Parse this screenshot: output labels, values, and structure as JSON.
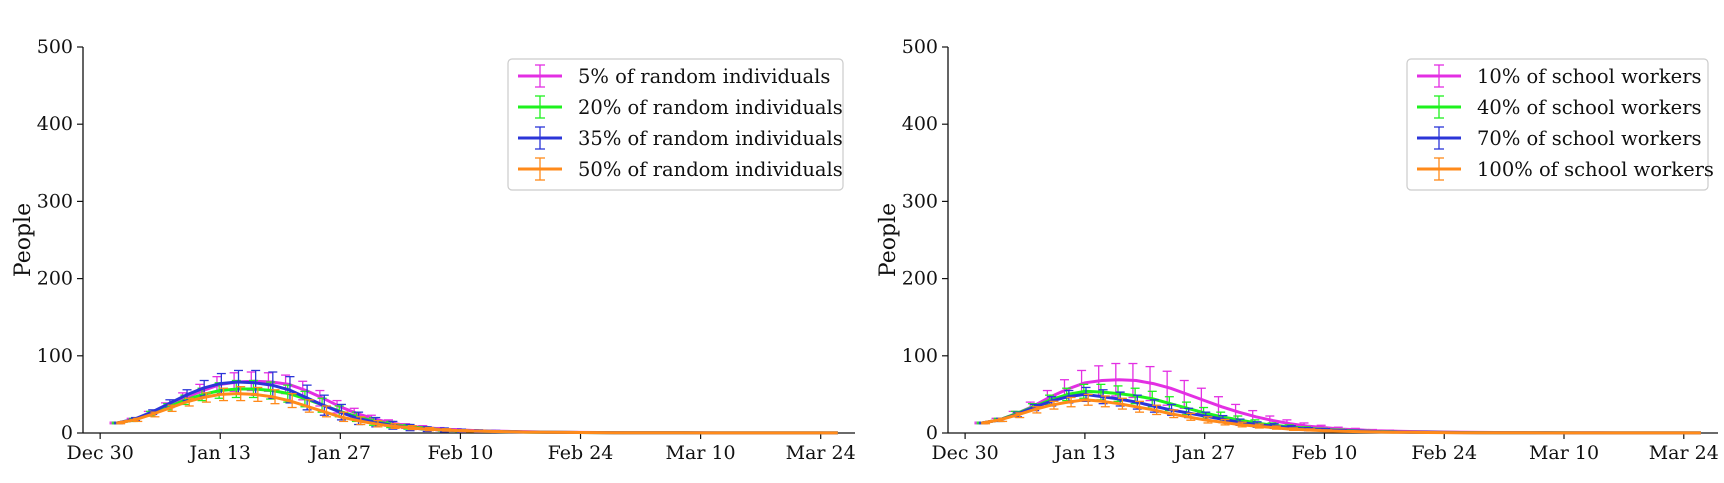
{
  "chart_data": [
    {
      "type": "line",
      "ylabel": "People",
      "ylim": [
        0,
        500
      ],
      "yticks": [
        0,
        100,
        200,
        300,
        400,
        500
      ],
      "xlim": [
        "2020-12-28",
        "2021-03-28"
      ],
      "xticks": [
        {
          "date": "2020-12-30",
          "label": "Dec 30"
        },
        {
          "date": "2021-01-13",
          "label": "Jan 13"
        },
        {
          "date": "2021-01-27",
          "label": "Jan 27"
        },
        {
          "date": "2021-02-10",
          "label": "Feb 10"
        },
        {
          "date": "2021-02-24",
          "label": "Feb 24"
        },
        {
          "date": "2021-03-10",
          "label": "Mar 10"
        },
        {
          "date": "2021-03-24",
          "label": "Mar 24"
        }
      ],
      "legend_position": "top-right",
      "grid": false,
      "error_bars": true,
      "x": [
        "2021-01-01",
        "2021-01-03",
        "2021-01-05",
        "2021-01-07",
        "2021-01-09",
        "2021-01-11",
        "2021-01-13",
        "2021-01-15",
        "2021-01-17",
        "2021-01-19",
        "2021-01-21",
        "2021-01-23",
        "2021-01-25",
        "2021-01-27",
        "2021-01-29",
        "2021-01-31",
        "2021-02-02",
        "2021-02-04",
        "2021-02-06",
        "2021-02-08",
        "2021-02-10",
        "2021-02-12",
        "2021-02-14",
        "2021-02-16",
        "2021-02-18",
        "2021-02-20",
        "2021-02-22",
        "2021-02-24",
        "2021-02-26",
        "2021-02-28",
        "2021-03-02",
        "2021-03-04",
        "2021-03-06",
        "2021-03-08",
        "2021-03-10",
        "2021-03-12",
        "2021-03-14",
        "2021-03-16",
        "2021-03-18",
        "2021-03-20",
        "2021-03-22",
        "2021-03-24",
        "2021-03-26"
      ],
      "series": [
        {
          "name": "5% of random individuals",
          "color": "#e32fe3",
          "values": [
            13,
            17,
            25,
            35,
            46,
            55,
            63,
            66,
            67,
            66,
            63,
            55,
            45,
            34,
            25,
            18,
            13,
            9,
            7,
            5,
            4,
            3,
            2.5,
            2,
            1.5,
            1.2,
            1,
            0.8,
            0.6,
            0.5,
            0.4,
            0.3,
            0.2,
            0.2,
            0.2,
            0.1,
            0.1,
            0.1,
            0.1,
            0.1,
            0.1,
            0.1,
            0.1
          ],
          "errors": [
            1,
            2,
            3,
            4,
            6,
            8,
            10,
            12,
            12,
            12,
            12,
            12,
            10,
            8,
            7,
            5,
            4,
            3,
            2.5,
            2,
            1.5,
            1.2,
            1,
            0.8,
            0.6,
            0.5,
            0.4,
            0.3,
            0.3,
            0.2,
            0.2,
            0.2,
            0.1,
            0.1,
            0.1,
            0.1,
            0.1,
            0.1,
            0.1,
            0.1,
            0.1,
            0.1,
            0.1
          ]
        },
        {
          "name": "20% of random individuals",
          "color": "#1ef21e",
          "values": [
            13,
            17,
            25,
            34,
            43,
            50,
            55,
            57,
            57,
            55,
            51,
            44,
            36,
            28,
            21,
            15,
            11,
            8,
            6,
            4,
            3,
            2.5,
            2,
            1.5,
            1.2,
            1,
            0.8,
            0.6,
            0.5,
            0.4,
            0.3,
            0.2,
            0.2,
            0.2,
            0.1,
            0.1,
            0.1,
            0.1,
            0.1,
            0.1,
            0.1,
            0.1,
            0.1
          ],
          "errors": [
            1,
            2,
            3,
            4,
            6,
            8,
            10,
            11,
            11,
            11,
            11,
            10,
            9,
            7,
            6,
            5,
            4,
            3,
            2,
            1.5,
            1.2,
            1,
            0.8,
            0.6,
            0.5,
            0.4,
            0.3,
            0.3,
            0.2,
            0.2,
            0.2,
            0.1,
            0.1,
            0.1,
            0.1,
            0.1,
            0.1,
            0.1,
            0.1,
            0.1,
            0.1,
            0.1,
            0.1
          ]
        },
        {
          "name": "35% of random individuals",
          "color": "#2b35d8",
          "values": [
            13,
            18,
            27,
            38,
            49,
            58,
            64,
            66,
            65,
            62,
            56,
            46,
            36,
            27,
            19,
            14,
            10,
            7,
            5,
            4,
            3,
            2.5,
            2,
            1.6,
            1.3,
            1,
            0.8,
            0.6,
            0.5,
            0.4,
            0.3,
            0.2,
            0.2,
            0.2,
            0.1,
            0.1,
            0.1,
            0.1,
            0.1,
            0.1,
            0.1,
            0.1,
            0.1
          ],
          "errors": [
            1,
            2,
            3,
            5,
            7,
            10,
            13,
            15,
            16,
            17,
            17,
            16,
            13,
            10,
            8,
            6,
            5,
            4,
            3,
            2.5,
            2,
            1.6,
            1.3,
            1,
            0.8,
            0.6,
            0.5,
            0.4,
            0.3,
            0.3,
            0.2,
            0.2,
            0.1,
            0.1,
            0.1,
            0.1,
            0.1,
            0.1,
            0.1,
            0.1,
            0.1,
            0.1,
            0.1
          ]
        },
        {
          "name": "50% of random individuals",
          "color": "#ff8a1a",
          "values": [
            13,
            17,
            24,
            32,
            40,
            46,
            50,
            51,
            50,
            47,
            42,
            35,
            28,
            21,
            16,
            12,
            9,
            7,
            5,
            4,
            3,
            2.5,
            2,
            1.5,
            1.2,
            1,
            0.8,
            0.6,
            0.5,
            0.4,
            0.3,
            0.2,
            0.2,
            0.2,
            0.1,
            0.1,
            0.1,
            0.1,
            0.1,
            0.1,
            0.1,
            0.1,
            0.1
          ],
          "errors": [
            1,
            2,
            3,
            4,
            5,
            6,
            8,
            9,
            9,
            9,
            9,
            8,
            7,
            6,
            5,
            4,
            3,
            2.5,
            2,
            1.5,
            1.2,
            1,
            0.8,
            0.6,
            0.5,
            0.4,
            0.3,
            0.3,
            0.2,
            0.2,
            0.2,
            0.1,
            0.1,
            0.1,
            0.1,
            0.1,
            0.1,
            0.1,
            0.1,
            0.1,
            0.1,
            0.1,
            0.1
          ]
        }
      ]
    },
    {
      "type": "line",
      "ylabel": "People",
      "ylim": [
        0,
        500
      ],
      "yticks": [
        0,
        100,
        200,
        300,
        400,
        500
      ],
      "xlim": [
        "2020-12-28",
        "2021-03-28"
      ],
      "xticks": [
        {
          "date": "2020-12-30",
          "label": "Dec 30"
        },
        {
          "date": "2021-01-13",
          "label": "Jan 13"
        },
        {
          "date": "2021-01-27",
          "label": "Jan 27"
        },
        {
          "date": "2021-02-10",
          "label": "Feb 10"
        },
        {
          "date": "2021-02-24",
          "label": "Feb 24"
        },
        {
          "date": "2021-03-10",
          "label": "Mar 10"
        },
        {
          "date": "2021-03-24",
          "label": "Mar 24"
        }
      ],
      "legend_position": "top-right",
      "grid": false,
      "error_bars": true,
      "x": [
        "2021-01-01",
        "2021-01-03",
        "2021-01-05",
        "2021-01-07",
        "2021-01-09",
        "2021-01-11",
        "2021-01-13",
        "2021-01-15",
        "2021-01-17",
        "2021-01-19",
        "2021-01-21",
        "2021-01-23",
        "2021-01-25",
        "2021-01-27",
        "2021-01-29",
        "2021-01-31",
        "2021-02-02",
        "2021-02-04",
        "2021-02-06",
        "2021-02-08",
        "2021-02-10",
        "2021-02-12",
        "2021-02-14",
        "2021-02-16",
        "2021-02-18",
        "2021-02-20",
        "2021-02-22",
        "2021-02-24",
        "2021-02-26",
        "2021-02-28",
        "2021-03-02",
        "2021-03-04",
        "2021-03-06",
        "2021-03-08",
        "2021-03-10",
        "2021-03-12",
        "2021-03-14",
        "2021-03-16",
        "2021-03-18",
        "2021-03-20",
        "2021-03-22",
        "2021-03-24",
        "2021-03-26"
      ],
      "series": [
        {
          "name": "10% of school workers",
          "color": "#e32fe3",
          "values": [
            13,
            17,
            25,
            35,
            47,
            57,
            65,
            68,
            69,
            68,
            64,
            58,
            50,
            42,
            34,
            27,
            21,
            16,
            12,
            9,
            7,
            5,
            4,
            3,
            2.5,
            2,
            1.6,
            1.3,
            1,
            0.8,
            0.6,
            0.5,
            0.4,
            0.3,
            0.2,
            0.2,
            0.2,
            0.1,
            0.1,
            0.1,
            0.1,
            0.1,
            0.1
          ],
          "errors": [
            1,
            2,
            3,
            5,
            8,
            12,
            16,
            19,
            21,
            22,
            22,
            22,
            18,
            16,
            13,
            10,
            8,
            6,
            5,
            4,
            3,
            2.5,
            2,
            1.5,
            1.2,
            1,
            0.8,
            0.6,
            0.5,
            0.4,
            0.3,
            0.3,
            0.2,
            0.2,
            0.2,
            0.1,
            0.1,
            0.1,
            0.1,
            0.1,
            0.1,
            0.1,
            0.1
          ]
        },
        {
          "name": "40% of school workers",
          "color": "#1ef21e",
          "values": [
            13,
            17,
            25,
            34,
            43,
            50,
            54,
            53,
            51,
            48,
            44,
            38,
            32,
            26,
            21,
            17,
            13,
            10,
            8,
            6,
            4.5,
            3.5,
            2.7,
            2,
            1.5,
            1.2,
            1,
            0.8,
            0.6,
            0.5,
            0.4,
            0.3,
            0.2,
            0.2,
            0.2,
            0.1,
            0.1,
            0.1,
            0.1,
            0.1,
            0.1,
            0.1,
            0.1
          ],
          "errors": [
            1,
            2,
            3,
            4,
            6,
            8,
            9,
            10,
            10,
            10,
            10,
            9,
            8,
            7,
            6,
            5,
            4,
            3,
            2.5,
            2,
            1.6,
            1.3,
            1,
            0.8,
            0.6,
            0.5,
            0.4,
            0.3,
            0.3,
            0.2,
            0.2,
            0.2,
            0.1,
            0.1,
            0.1,
            0.1,
            0.1,
            0.1,
            0.1,
            0.1,
            0.1,
            0.1,
            0.1
          ]
        },
        {
          "name": "70% of school workers",
          "color": "#2b35d8",
          "values": [
            13,
            17,
            24,
            33,
            41,
            47,
            50,
            47,
            44,
            40,
            35,
            30,
            26,
            22,
            18,
            14,
            11,
            9,
            7,
            5,
            4,
            3,
            2.4,
            1.8,
            1.4,
            1.1,
            0.9,
            0.7,
            0.5,
            0.4,
            0.3,
            0.2,
            0.2,
            0.2,
            0.1,
            0.1,
            0.1,
            0.1,
            0.1,
            0.1,
            0.1,
            0.1,
            0.1
          ],
          "errors": [
            1,
            2,
            3,
            4,
            6,
            8,
            9,
            9,
            9,
            9,
            8,
            7,
            6,
            5,
            4.5,
            4,
            3.5,
            3,
            2.5,
            2,
            1.6,
            1.3,
            1,
            0.8,
            0.6,
            0.5,
            0.4,
            0.3,
            0.3,
            0.2,
            0.2,
            0.2,
            0.1,
            0.1,
            0.1,
            0.1,
            0.1,
            0.1,
            0.1,
            0.1,
            0.1,
            0.1,
            0.1
          ]
        },
        {
          "name": "100% of school workers",
          "color": "#ff8a1a",
          "values": [
            13,
            17,
            23,
            30,
            36,
            40,
            43,
            41,
            38,
            34,
            30,
            25,
            21,
            17,
            14,
            11,
            9,
            7,
            5,
            4,
            3,
            2.3,
            1.8,
            1.4,
            1.1,
            0.9,
            0.7,
            0.5,
            0.4,
            0.3,
            0.2,
            0.2,
            0.2,
            0.1,
            0.1,
            0.1,
            0.1,
            0.1,
            0.1,
            0.1,
            0.1,
            0.1,
            0.1
          ],
          "errors": [
            1,
            2,
            3,
            4,
            5,
            6,
            7,
            7,
            7,
            7,
            6,
            5,
            4.5,
            4,
            3.5,
            3,
            2.5,
            2,
            1.6,
            1.3,
            1,
            0.8,
            0.6,
            0.5,
            0.4,
            0.3,
            0.3,
            0.2,
            0.2,
            0.2,
            0.1,
            0.1,
            0.1,
            0.1,
            0.1,
            0.1,
            0.1,
            0.1,
            0.1,
            0.1,
            0.1,
            0.1,
            0.1
          ]
        }
      ]
    }
  ]
}
